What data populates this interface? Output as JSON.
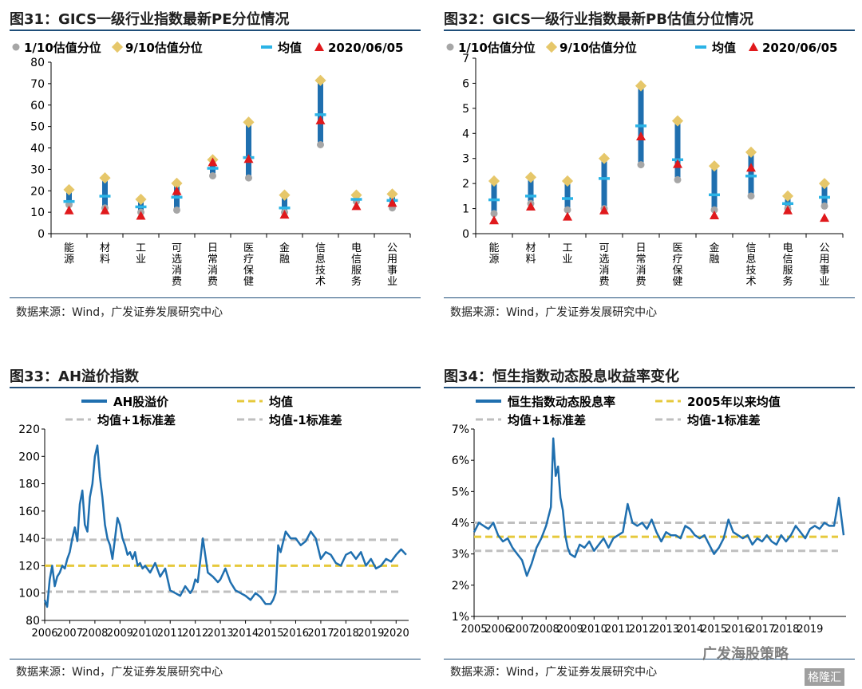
{
  "panels": [
    {
      "id": "p31",
      "title": "图31：GICS一级行业指数最新PE分位情况",
      "source": "数据来源：Wind，广发证券发展研究中心"
    },
    {
      "id": "p32",
      "title": "图32：GICS一级行业指数最新PB估值分位情况",
      "source": "数据来源：Wind，广发证券发展研究中心"
    },
    {
      "id": "p33",
      "title": "图33：AH溢价指数",
      "source": "数据来源：Wind，广发证券发展研究中心"
    },
    {
      "id": "p34",
      "title": "图34：恒生指数动态股息收益率变化",
      "source": "数据来源：Wind，广发证券发展研究中心"
    }
  ],
  "watermark": {
    "text1": "广发海股策略",
    "text2": "格隆汇"
  },
  "colors": {
    "bar": "#1f6faf",
    "low": "#a6a6a6",
    "high": "#e6c76a",
    "mean": "#2bb3e6",
    "latest": "#e0191c",
    "line": "#1f6faf",
    "meanLine": "#e6c93c",
    "sdLine": "#bfbfbf"
  },
  "chart_data": [
    {
      "type": "range",
      "title": "GICS一级行业指数最新PE分位情况",
      "legend": [
        "1/10估值分位",
        "9/10估值分位",
        "均值",
        "2020/06/05"
      ],
      "categories": [
        "能源",
        "材料",
        "工业",
        "可选消费",
        "日常消费",
        "医疗保健",
        "金融",
        "信息技术",
        "电信服务",
        "公用事业"
      ],
      "low": [
        13.5,
        12,
        10,
        11,
        27,
        26,
        10,
        41.5,
        15,
        12
      ],
      "high": [
        20.5,
        26,
        16,
        23.5,
        34.5,
        52,
        18,
        71.5,
        18,
        18.5
      ],
      "mean": [
        15,
        17.5,
        12.5,
        17,
        30.5,
        35.5,
        12,
        55.5,
        16,
        15.5
      ],
      "latest": [
        10.5,
        10.5,
        8,
        19.5,
        33,
        34.5,
        8.5,
        52.5,
        12.5,
        14
      ],
      "yticks": [
        "0",
        "10",
        "20",
        "30",
        "40",
        "50",
        "60",
        "70",
        "80"
      ],
      "ylim": [
        0,
        80
      ]
    },
    {
      "type": "range",
      "title": "GICS一级行业指数最新PB估值分位情况",
      "legend": [
        "1/10估值分位",
        "9/10估值分位",
        "均值",
        "2020/06/05"
      ],
      "categories": [
        "能源",
        "材料",
        "工业",
        "可选消费",
        "日常消费",
        "医疗保健",
        "金融",
        "信息技术",
        "电信服务",
        "公用事业"
      ],
      "low": [
        0.8,
        1.2,
        0.95,
        1.0,
        2.75,
        2.15,
        0.95,
        1.5,
        1.0,
        1.1
      ],
      "high": [
        2.1,
        2.25,
        2.1,
        3.0,
        5.9,
        4.5,
        2.7,
        3.25,
        1.5,
        2.0
      ],
      "mean": [
        1.35,
        1.5,
        1.4,
        2.2,
        4.3,
        2.95,
        1.55,
        2.3,
        1.2,
        1.45
      ],
      "latest": [
        0.5,
        1.05,
        0.65,
        0.9,
        3.85,
        2.75,
        0.7,
        2.6,
        0.9,
        0.6
      ],
      "yticks": [
        "0",
        "1",
        "2",
        "3",
        "4",
        "5",
        "6",
        "7"
      ],
      "ylim": [
        0,
        7
      ]
    },
    {
      "type": "line",
      "title": "AH溢价指数",
      "legend": [
        "AH股溢价",
        "均值",
        "均值+1标准差",
        "均值-1标准差"
      ],
      "xticks": [
        "2006",
        "2007",
        "2008",
        "2009",
        "2010",
        "2011",
        "2012",
        "2013",
        "2014",
        "2015",
        "2016",
        "2017",
        "2018",
        "2019",
        "2020"
      ],
      "xlim": [
        2006,
        2020.5
      ],
      "yticks": [
        "80",
        "100",
        "120",
        "140",
        "160",
        "180",
        "200",
        "220"
      ],
      "ylim": [
        80,
        220
      ],
      "mean": 120,
      "plus_sd": 139,
      "minus_sd": 101,
      "x": [
        2006.0,
        2006.1,
        2006.2,
        2006.3,
        2006.4,
        2006.5,
        2006.6,
        2006.7,
        2006.8,
        2006.9,
        2007.0,
        2007.1,
        2007.2,
        2007.3,
        2007.4,
        2007.5,
        2007.6,
        2007.7,
        2007.8,
        2007.9,
        2008.0,
        2008.1,
        2008.2,
        2008.3,
        2008.4,
        2008.5,
        2008.6,
        2008.7,
        2008.8,
        2008.9,
        2009.0,
        2009.1,
        2009.2,
        2009.3,
        2009.4,
        2009.5,
        2009.6,
        2009.7,
        2009.8,
        2009.9,
        2010.0,
        2010.2,
        2010.4,
        2010.6,
        2010.8,
        2011.0,
        2011.2,
        2011.4,
        2011.6,
        2011.8,
        2011.9,
        2012.0,
        2012.1,
        2012.3,
        2012.5,
        2012.7,
        2012.9,
        2013.0,
        2013.2,
        2013.4,
        2013.6,
        2013.8,
        2014.0,
        2014.2,
        2014.4,
        2014.6,
        2014.8,
        2015.0,
        2015.1,
        2015.2,
        2015.3,
        2015.4,
        2015.6,
        2015.8,
        2016.0,
        2016.2,
        2016.4,
        2016.6,
        2016.8,
        2017.0,
        2017.2,
        2017.4,
        2017.6,
        2017.8,
        2018.0,
        2018.2,
        2018.4,
        2018.6,
        2018.8,
        2019.0,
        2019.2,
        2019.4,
        2019.6,
        2019.8,
        2020.0,
        2020.2,
        2020.4
      ],
      "values": [
        95,
        90,
        110,
        120,
        105,
        112,
        115,
        120,
        118,
        125,
        130,
        140,
        148,
        138,
        165,
        175,
        150,
        145,
        170,
        180,
        200,
        208,
        185,
        170,
        150,
        140,
        135,
        125,
        140,
        155,
        150,
        140,
        135,
        128,
        130,
        125,
        130,
        120,
        122,
        118,
        120,
        115,
        122,
        112,
        118,
        102,
        100,
        98,
        105,
        100,
        103,
        110,
        108,
        140,
        115,
        112,
        108,
        110,
        118,
        108,
        102,
        100,
        98,
        95,
        100,
        97,
        92,
        92,
        95,
        100,
        135,
        130,
        145,
        140,
        140,
        135,
        138,
        145,
        140,
        125,
        130,
        128,
        122,
        120,
        128,
        130,
        125,
        130,
        120,
        125,
        118,
        120,
        125,
        123,
        128,
        132,
        128
      ]
    },
    {
      "type": "line",
      "title": "恒生指数动态股息收益率变化",
      "legend": [
        "恒生指数动态股息率",
        "2005年以来均值",
        "均值+1标准差",
        "均值-1标准差"
      ],
      "xticks": [
        "2005",
        "2006",
        "2007",
        "2008",
        "2009",
        "2010",
        "2011",
        "2012",
        "2013",
        "2014",
        "2015",
        "2016",
        "2017",
        "2018",
        "2019"
      ],
      "xlim": [
        2005,
        2020.5
      ],
      "yticks": [
        "1%",
        "2%",
        "3%",
        "4%",
        "5%",
        "6%",
        "7%"
      ],
      "ylim": [
        1,
        7
      ],
      "mean": 3.55,
      "plus_sd": 4.0,
      "minus_sd": 3.1,
      "x": [
        2005.0,
        2005.2,
        2005.4,
        2005.6,
        2005.8,
        2006.0,
        2006.2,
        2006.4,
        2006.6,
        2006.8,
        2007.0,
        2007.2,
        2007.4,
        2007.6,
        2007.8,
        2008.0,
        2008.2,
        2008.3,
        2008.4,
        2008.5,
        2008.6,
        2008.7,
        2008.8,
        2008.9,
        2009.0,
        2009.2,
        2009.4,
        2009.6,
        2009.8,
        2010.0,
        2010.2,
        2010.4,
        2010.6,
        2010.8,
        2011.0,
        2011.2,
        2011.4,
        2011.6,
        2011.8,
        2012.0,
        2012.2,
        2012.4,
        2012.6,
        2012.8,
        2013.0,
        2013.2,
        2013.4,
        2013.6,
        2013.8,
        2014.0,
        2014.2,
        2014.4,
        2014.6,
        2014.8,
        2015.0,
        2015.2,
        2015.4,
        2015.6,
        2015.8,
        2016.0,
        2016.2,
        2016.4,
        2016.6,
        2016.8,
        2017.0,
        2017.2,
        2017.4,
        2017.6,
        2017.8,
        2018.0,
        2018.2,
        2018.4,
        2018.6,
        2018.8,
        2019.0,
        2019.2,
        2019.4,
        2019.6,
        2019.8,
        2020.0,
        2020.2,
        2020.4
      ],
      "values": [
        3.7,
        4.0,
        3.9,
        3.8,
        4.0,
        3.6,
        3.4,
        3.5,
        3.2,
        3.0,
        2.8,
        2.3,
        2.7,
        3.2,
        3.5,
        3.9,
        4.5,
        6.7,
        5.5,
        5.8,
        4.8,
        4.4,
        3.6,
        3.2,
        3.0,
        2.9,
        3.3,
        3.2,
        3.4,
        3.1,
        3.3,
        3.5,
        3.2,
        3.5,
        3.6,
        3.7,
        4.6,
        4.0,
        3.9,
        4.0,
        3.8,
        4.1,
        3.7,
        3.4,
        3.7,
        3.6,
        3.6,
        3.5,
        3.9,
        3.8,
        3.6,
        3.5,
        3.6,
        3.3,
        3.0,
        3.2,
        3.5,
        4.1,
        3.7,
        3.6,
        3.5,
        3.6,
        3.3,
        3.5,
        3.4,
        3.6,
        3.4,
        3.3,
        3.6,
        3.4,
        3.6,
        3.9,
        3.7,
        3.5,
        3.8,
        3.9,
        3.8,
        4.0,
        3.9,
        3.9,
        4.8,
        3.6
      ]
    }
  ]
}
